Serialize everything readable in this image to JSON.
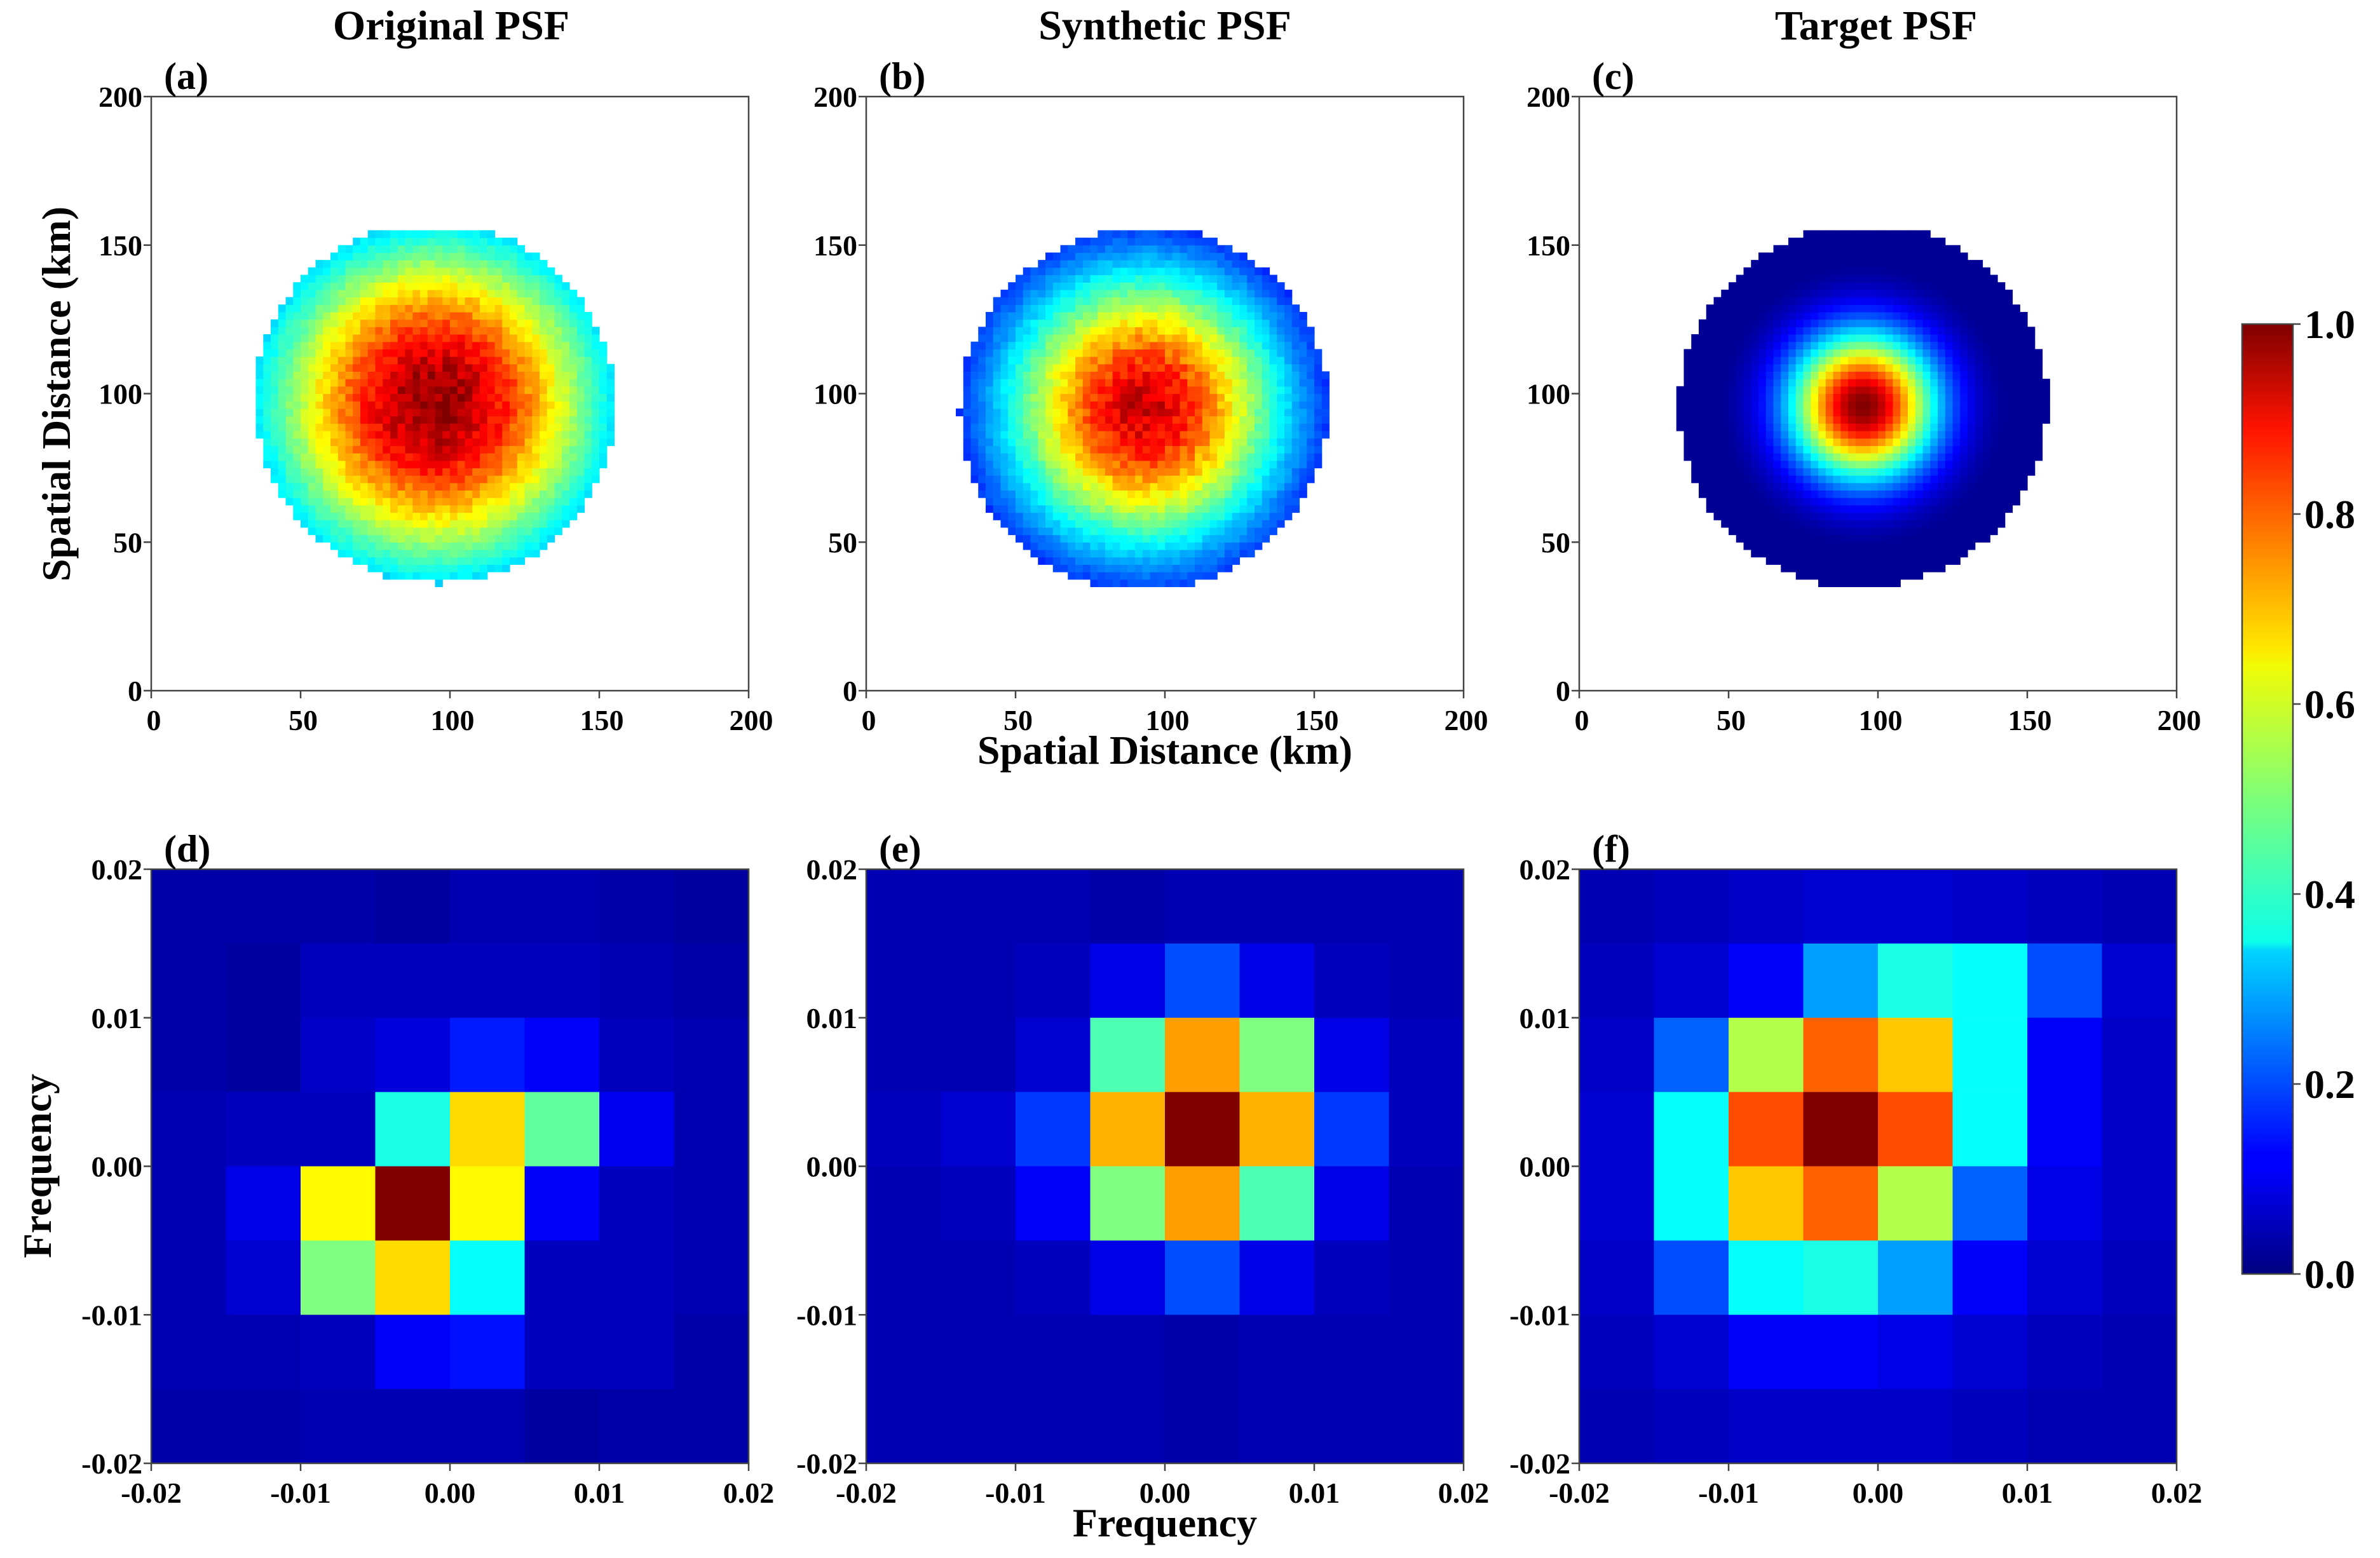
{
  "colors": {
    "colormap": "jet",
    "background": "#ffffff",
    "low": "#00007f",
    "high": "#7f0000"
  },
  "chart_data": [
    {
      "id": "a",
      "panel_label": "(a)",
      "title": "Original PSF",
      "type": "heatmap",
      "xlabel": "",
      "ylabel": "Spatial Distance (km)",
      "xlim": [
        0,
        200
      ],
      "ylim": [
        0,
        200
      ],
      "x_ticks": [
        "0",
        "50",
        "100",
        "150",
        "200"
      ],
      "y_ticks": [
        "0",
        "50",
        "100",
        "150",
        "200"
      ],
      "psf_center": [
        95,
        97
      ],
      "mask_radius": [
        60,
        61
      ],
      "mask_angle_deg": 30,
      "mask_cut_y": [
        33,
        156
      ],
      "sigma": [
        42,
        42
      ],
      "peak": 0.98,
      "noise": 0.05
    },
    {
      "id": "b",
      "panel_label": "(b)",
      "title": "Synthetic PSF",
      "type": "heatmap",
      "xlabel": "Spatial Distance (km)",
      "ylabel": "",
      "xlim": [
        0,
        200
      ],
      "ylim": [
        0,
        200
      ],
      "x_ticks": [
        "0",
        "50",
        "100",
        "150",
        "200"
      ],
      "y_ticks": [
        "0",
        "50",
        "100",
        "150",
        "200"
      ],
      "psf_center": [
        93,
        95
      ],
      "mask_radius": [
        62,
        61
      ],
      "mask_angle_deg": 30,
      "mask_cut_y": [
        33,
        156
      ],
      "sigma": [
        34,
        34
      ],
      "peak": 0.92,
      "noise": 0.06
    },
    {
      "id": "c",
      "panel_label": "(c)",
      "title": "Target PSF",
      "type": "heatmap",
      "xlabel": "",
      "ylabel": "",
      "xlim": [
        0,
        200
      ],
      "ylim": [
        0,
        200
      ],
      "x_ticks": [
        "0",
        "50",
        "100",
        "150",
        "200"
      ],
      "y_ticks": [
        "0",
        "50",
        "100",
        "150",
        "200"
      ],
      "psf_center": [
        95,
        96
      ],
      "mask_radius": [
        62,
        61
      ],
      "mask_angle_deg": 30,
      "mask_cut_y": [
        33,
        156
      ],
      "sigma": [
        17,
        17
      ],
      "peak": 1.0,
      "noise": 0.0
    },
    {
      "id": "d",
      "panel_label": "(d)",
      "title": "",
      "type": "heatmap",
      "xlabel": "",
      "ylabel": "Frequency",
      "xlim": [
        -0.02,
        0.02
      ],
      "ylim": [
        -0.02,
        0.02
      ],
      "x_ticks": [
        "-0.02",
        "-0.01",
        "0.00",
        "0.01",
        "0.02"
      ],
      "y_ticks": [
        "-0.02",
        "-0.01",
        "0.00",
        "0.01",
        "0.02"
      ],
      "rows_top_to_bottom": [
        [
          0.04,
          0.04,
          0.04,
          0.03,
          0.05,
          0.05,
          0.04,
          0.03
        ],
        [
          0.04,
          0.03,
          0.06,
          0.06,
          0.06,
          0.06,
          0.05,
          0.04
        ],
        [
          0.04,
          0.03,
          0.07,
          0.09,
          0.15,
          0.12,
          0.06,
          0.05
        ],
        [
          0.05,
          0.06,
          0.06,
          0.4,
          0.66,
          0.47,
          0.11,
          0.05
        ],
        [
          0.05,
          0.1,
          0.63,
          1.0,
          0.63,
          0.12,
          0.06,
          0.05
        ],
        [
          0.05,
          0.08,
          0.5,
          0.66,
          0.38,
          0.06,
          0.06,
          0.05
        ],
        [
          0.05,
          0.05,
          0.06,
          0.12,
          0.14,
          0.06,
          0.06,
          0.04
        ],
        [
          0.04,
          0.04,
          0.05,
          0.05,
          0.05,
          0.03,
          0.04,
          0.04
        ]
      ]
    },
    {
      "id": "e",
      "panel_label": "(e)",
      "title": "",
      "type": "heatmap",
      "xlabel": "Frequency",
      "ylabel": "",
      "xlim": [
        -0.02,
        0.02
      ],
      "ylim": [
        -0.02,
        0.02
      ],
      "x_ticks": [
        "-0.02",
        "-0.01",
        "0.00",
        "0.01",
        "0.02"
      ],
      "y_ticks": [
        "-0.02",
        "-0.01",
        "0.00",
        "0.01",
        "0.02"
      ],
      "rows_top_to_bottom": [
        [
          0.05,
          0.05,
          0.05,
          0.04,
          0.05,
          0.05,
          0.05,
          0.05
        ],
        [
          0.05,
          0.05,
          0.06,
          0.1,
          0.2,
          0.1,
          0.06,
          0.05
        ],
        [
          0.05,
          0.05,
          0.08,
          0.45,
          0.72,
          0.5,
          0.1,
          0.06
        ],
        [
          0.06,
          0.08,
          0.18,
          0.7,
          1.0,
          0.7,
          0.18,
          0.06
        ],
        [
          0.05,
          0.06,
          0.12,
          0.5,
          0.72,
          0.45,
          0.1,
          0.05
        ],
        [
          0.05,
          0.05,
          0.06,
          0.1,
          0.2,
          0.1,
          0.06,
          0.05
        ],
        [
          0.05,
          0.05,
          0.05,
          0.05,
          0.04,
          0.05,
          0.05,
          0.05
        ],
        [
          0.05,
          0.05,
          0.05,
          0.05,
          0.04,
          0.05,
          0.05,
          0.05
        ]
      ]
    },
    {
      "id": "f",
      "panel_label": "(f)",
      "title": "",
      "type": "heatmap",
      "xlabel": "",
      "ylabel": "",
      "xlim": [
        -0.02,
        0.02
      ],
      "ylim": [
        -0.02,
        0.02
      ],
      "x_ticks": [
        "-0.02",
        "-0.01",
        "0.00",
        "0.01",
        "0.02"
      ],
      "y_ticks": [
        "-0.02",
        "-0.01",
        "0.00",
        "0.01",
        "0.02"
      ],
      "rows_top_to_bottom": [
        [
          0.05,
          0.06,
          0.07,
          0.08,
          0.08,
          0.07,
          0.06,
          0.05
        ],
        [
          0.06,
          0.08,
          0.12,
          0.28,
          0.4,
          0.38,
          0.2,
          0.08
        ],
        [
          0.07,
          0.22,
          0.55,
          0.78,
          0.68,
          0.38,
          0.12,
          0.07
        ],
        [
          0.08,
          0.38,
          0.8,
          1.0,
          0.8,
          0.38,
          0.12,
          0.07
        ],
        [
          0.08,
          0.38,
          0.68,
          0.78,
          0.55,
          0.22,
          0.1,
          0.07
        ],
        [
          0.07,
          0.2,
          0.38,
          0.4,
          0.28,
          0.12,
          0.08,
          0.06
        ],
        [
          0.06,
          0.08,
          0.12,
          0.12,
          0.1,
          0.08,
          0.06,
          0.05
        ],
        [
          0.05,
          0.06,
          0.07,
          0.07,
          0.07,
          0.06,
          0.05,
          0.05
        ]
      ]
    }
  ],
  "colorbar": {
    "min": 0.0,
    "max": 1.0,
    "ticks": [
      "0.0",
      "0.2",
      "0.4",
      "0.6",
      "0.8",
      "1.0"
    ]
  }
}
